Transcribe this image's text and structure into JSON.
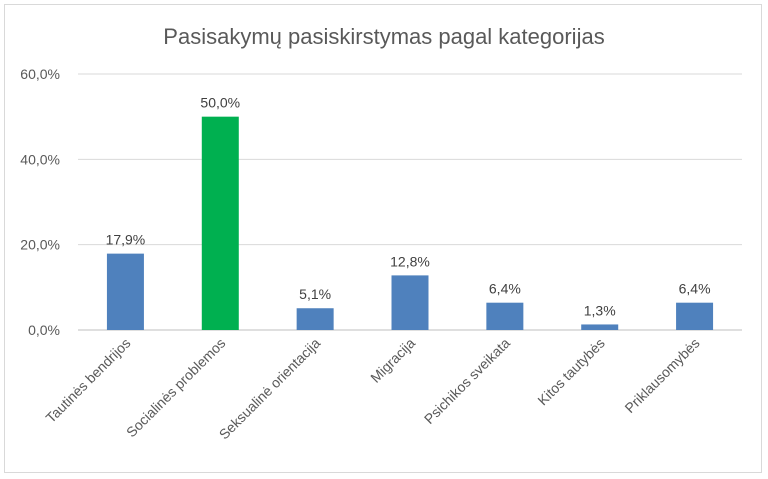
{
  "chart_data": {
    "type": "bar",
    "title": "Pasisakymų pasiskirstymas pagal kategorijas",
    "categories": [
      "Tautinės bendrijos",
      "Socialinės problemos",
      "Seksualinė orientacija",
      "Migracija",
      "Psichikos sveikata",
      "Kitos tautybės",
      "Priklausomybės"
    ],
    "values": [
      17.9,
      50.0,
      5.1,
      12.8,
      6.4,
      1.3,
      6.4
    ],
    "data_labels": [
      "17,9%",
      "50,0%",
      "5,1%",
      "12,8%",
      "6,4%",
      "1,3%",
      "6,4%"
    ],
    "yticks": [
      "0,0%",
      "20,0%",
      "40,0%",
      "60,0%"
    ],
    "ylim": [
      0,
      60
    ],
    "grid": true,
    "colors": {
      "default": "#4f81bd",
      "highlight": "#00b050",
      "highlight_index": 1
    }
  }
}
